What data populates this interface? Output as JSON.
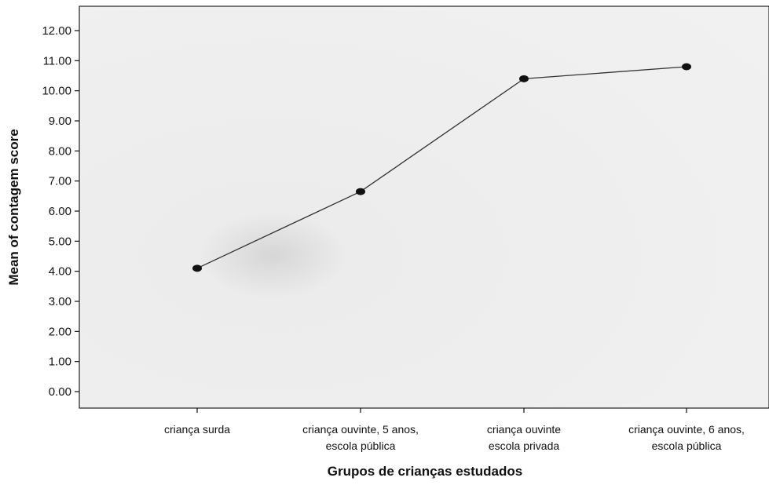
{
  "chart_data": {
    "type": "line",
    "title": "",
    "xlabel": "Grupos de crianças estudados",
    "ylabel": "Mean of contagem score",
    "ylim": [
      0,
      12
    ],
    "yticks": [
      "0.00",
      "1.00",
      "2.00",
      "3.00",
      "4.00",
      "5.00",
      "6.00",
      "7.00",
      "8.00",
      "9.00",
      "10.00",
      "11.00",
      "12.00"
    ],
    "categories": [
      [
        "criança surda"
      ],
      [
        "criança ouvinte, 5 anos,",
        "escola pública"
      ],
      [
        "criança ouvinte",
        "escola privada"
      ],
      [
        "criança ouvinte, 6 anos,",
        "escola pública"
      ]
    ],
    "values": [
      4.1,
      6.65,
      10.4,
      10.8
    ],
    "grid": false,
    "colors": {
      "plot_background": "#eeeeee",
      "line": "#333333",
      "marker": "#111111",
      "axis": "#111111"
    }
  }
}
